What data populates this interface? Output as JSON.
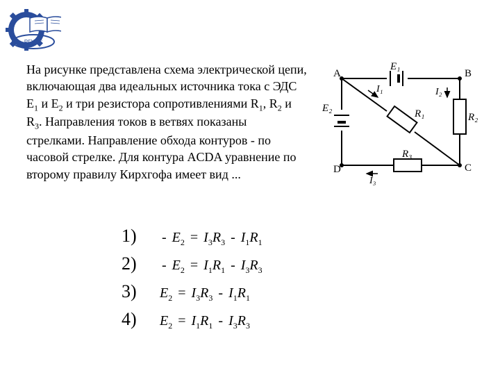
{
  "logo": {
    "text": "РГУПС",
    "gear_color": "#2a4d9c",
    "book_color": "#ffffff",
    "book_stroke": "#2a4d9c"
  },
  "problem": {
    "text_parts": {
      "p1": "На рисунке представлена схема электрической цепи, включающая два идеальных источника тока с ЭДС Е",
      "s1": "1",
      "p2": " и Е",
      "s2": "2",
      "p3": " и три резистора сопротивлениями R",
      "s3": "1",
      "p4": ", R",
      "s4": "2",
      "p5": " и R",
      "s5": "3",
      "p6": ". Направления токов в ветвях показаны стрелками. Направление обхода контуров - по часовой стрелке. Для контура ACDA уравнение по второму правилу Кирхгофа имеет вид ..."
    }
  },
  "circuit": {
    "nodes": {
      "A": "A",
      "B": "B",
      "C": "C",
      "D": "D"
    },
    "labels": {
      "E1": "E₁",
      "E2": "E₂",
      "R1": "R₁",
      "R2": "R₂",
      "R3": "R₃",
      "I1": "I₁",
      "I2": "I₂",
      "I3": "I₃"
    },
    "line_color": "#000000",
    "fill_color": "#ffffff"
  },
  "answers": {
    "items": [
      {
        "num": "1)",
        "neg_prefix": "-",
        "lhs": "E",
        "lhs_sub": "2",
        "eq": "=",
        "t1": "I",
        "t1s": "3",
        "r1": "R",
        "r1s": "3",
        "op": "-",
        "t2": "I",
        "t2s": "1",
        "r2": "R",
        "r2s": "1"
      },
      {
        "num": "2)",
        "neg_prefix": "-",
        "lhs": "E",
        "lhs_sub": "2",
        "eq": "=",
        "t1": "I",
        "t1s": "1",
        "r1": "R",
        "r1s": "1",
        "op": "-",
        "t2": "I",
        "t2s": "3",
        "r2": "R",
        "r2s": "3"
      },
      {
        "num": "3)",
        "neg_prefix": "",
        "lhs": "E",
        "lhs_sub": "2",
        "eq": "=",
        "t1": "I",
        "t1s": "3",
        "r1": "R",
        "r1s": "3",
        "op": "-",
        "t2": "I",
        "t2s": "1",
        "r2": "R",
        "r2s": "1"
      },
      {
        "num": "4)",
        "neg_prefix": "",
        "lhs": "E",
        "lhs_sub": "2",
        "eq": "=",
        "t1": "I",
        "t1s": "1",
        "r1": "R",
        "r1s": "1",
        "op": "-",
        "t2": "I",
        "t2s": "3",
        "r2": "R",
        "r2s": "3"
      }
    ]
  }
}
